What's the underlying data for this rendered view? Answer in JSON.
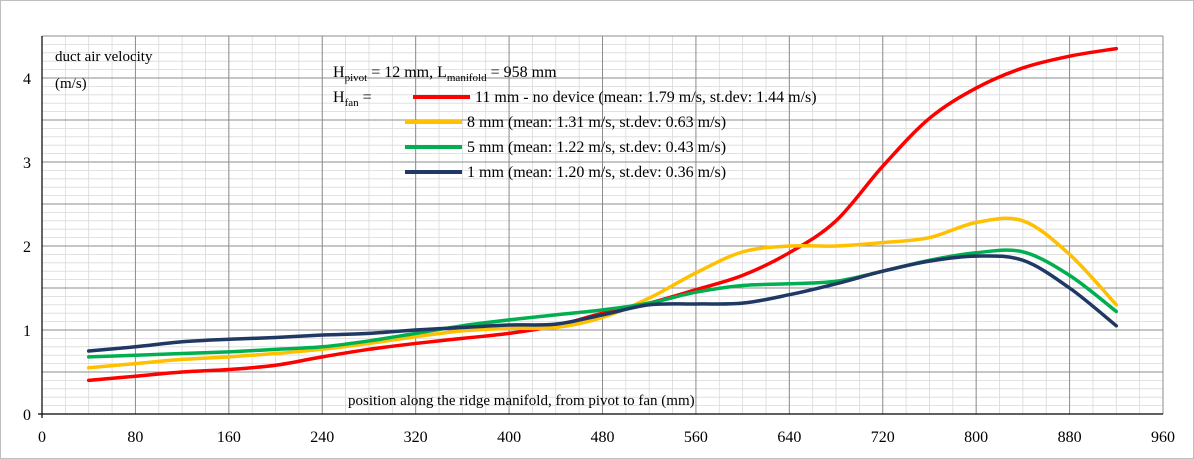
{
  "chart_data": {
    "type": "line",
    "title": "",
    "xlabel": "position  along the ridge manifold,  from pivot to fan  (mm)",
    "ylabel_lines": [
      "duct air velocity",
      "(m/s)"
    ],
    "xlim": [
      0,
      960
    ],
    "ylim": [
      0,
      4.5
    ],
    "x_ticks": [
      0,
      80,
      160,
      240,
      320,
      400,
      480,
      560,
      640,
      720,
      800,
      880,
      960
    ],
    "y_ticks": [
      0,
      1,
      2,
      3,
      4
    ],
    "grid": true,
    "legend_placement": "top-center",
    "annotation": {
      "pivot_label": "H",
      "pivot_sub": "pivot",
      "pivot_eq": " = 12 mm,  L",
      "manifold_sub": "manifold",
      "manifold_eq": " = 958 mm",
      "fan_label": "H",
      "fan_sub": "fan",
      "fan_eq": " ="
    },
    "series": [
      {
        "name": "11 mm  - no device (mean: 1.79 m/s, st.dev: 1.44 m/s)",
        "color": "#ff0000",
        "x": [
          40,
          80,
          120,
          160,
          200,
          240,
          280,
          320,
          360,
          400,
          440,
          480,
          520,
          560,
          600,
          640,
          680,
          720,
          760,
          800,
          840,
          880,
          920
        ],
        "y": [
          0.4,
          0.45,
          0.5,
          0.53,
          0.58,
          0.68,
          0.77,
          0.84,
          0.9,
          0.96,
          1.05,
          1.2,
          1.32,
          1.48,
          1.65,
          1.92,
          2.3,
          2.95,
          3.52,
          3.88,
          4.12,
          4.26,
          4.35
        ]
      },
      {
        "name": "8 mm (mean: 1.31 m/s, st.dev: 0.63 m/s)",
        "color": "#ffc000",
        "x": [
          40,
          80,
          120,
          160,
          200,
          240,
          280,
          320,
          360,
          400,
          440,
          480,
          520,
          560,
          600,
          640,
          680,
          720,
          760,
          800,
          840,
          880,
          920
        ],
        "y": [
          0.55,
          0.6,
          0.65,
          0.68,
          0.72,
          0.77,
          0.84,
          0.92,
          0.99,
          1.02,
          1.03,
          1.15,
          1.38,
          1.68,
          1.93,
          2.0,
          2.0,
          2.04,
          2.1,
          2.28,
          2.3,
          1.9,
          1.3
        ]
      },
      {
        "name": "5 mm (mean: 1.22 m/s, st.dev: 0.43 m/s)",
        "color": "#00b050",
        "x": [
          40,
          80,
          120,
          160,
          200,
          240,
          280,
          320,
          360,
          400,
          440,
          480,
          520,
          560,
          600,
          640,
          680,
          720,
          760,
          800,
          840,
          880,
          920
        ],
        "y": [
          0.68,
          0.7,
          0.72,
          0.74,
          0.77,
          0.8,
          0.87,
          0.96,
          1.05,
          1.12,
          1.18,
          1.24,
          1.32,
          1.45,
          1.53,
          1.55,
          1.58,
          1.7,
          1.83,
          1.92,
          1.93,
          1.65,
          1.22
        ]
      },
      {
        "name": "1 mm (mean: 1.20 m/s, st.dev: 0.36 m/s)",
        "color": "#1f3864",
        "x": [
          40,
          80,
          120,
          160,
          200,
          240,
          280,
          320,
          360,
          400,
          440,
          480,
          520,
          560,
          600,
          640,
          680,
          720,
          760,
          800,
          840,
          880,
          920
        ],
        "y": [
          0.75,
          0.8,
          0.86,
          0.89,
          0.91,
          0.94,
          0.96,
          1.0,
          1.03,
          1.06,
          1.07,
          1.18,
          1.3,
          1.31,
          1.32,
          1.42,
          1.55,
          1.7,
          1.82,
          1.88,
          1.83,
          1.5,
          1.05
        ]
      }
    ]
  }
}
